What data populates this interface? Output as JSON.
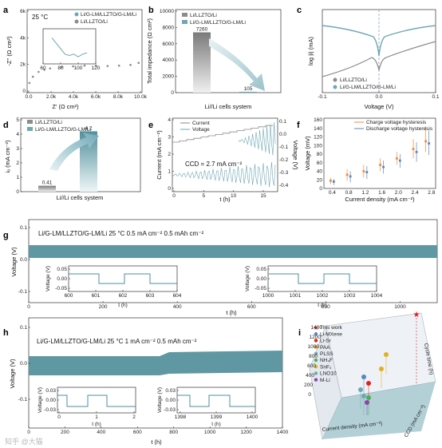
{
  "colors": {
    "gray": "#8c8c8c",
    "teal": "#6fa8b5",
    "orange": "#f08a3c",
    "blue": "#5a86c2",
    "red": "#e02020",
    "green": "#4caf50",
    "purple": "#8e44ad",
    "yellow": "#e0b020"
  },
  "watermark": "知乎 @大猫",
  "chart_data": [
    {
      "id": "a",
      "label": "a",
      "type": "scatter",
      "ylabel": "-Z'' (Ω cm²)",
      "xlabel": "Z' (Ω cm²)",
      "xlim": [
        0,
        10000
      ],
      "ylim": [
        0,
        6000
      ],
      "xticks": [
        "0.0",
        "2.0k",
        "4.0k",
        "6.0k",
        "8.0k",
        "10.0k"
      ],
      "yticks": [
        "0",
        "2k",
        "4k",
        "6k"
      ],
      "annotation": "25 °C",
      "series": [
        {
          "name": "Li/G-LM/LLZTO/G-LM/Li",
          "color": "teal"
        },
        {
          "name": "Li/LLZTO/Li",
          "color": "gray",
          "x": [
            0,
            200,
            500,
            1000,
            1500,
            2000,
            3000,
            4000,
            5000,
            6000,
            7000,
            8000,
            9000,
            9700
          ],
          "y": [
            0,
            700,
            1150,
            1500,
            1650,
            1750,
            1850,
            1900,
            1950,
            1950,
            1920,
            1950,
            2000,
            2150
          ]
        }
      ],
      "inset": {
        "xticks": [
          "60",
          "80",
          "100",
          "120"
        ],
        "xlim": [
          60,
          120
        ],
        "x": [
          70,
          75,
          80,
          85,
          90,
          95,
          100,
          105,
          110
        ],
        "y": [
          0.9,
          0.7,
          0.5,
          0.3,
          0.25,
          0.3,
          0.2,
          0.3,
          0.35
        ]
      }
    },
    {
      "id": "b",
      "label": "b",
      "type": "bar",
      "ylabel": "Total impedance (Ω cm²)",
      "xlabel": "Li//Li cells system",
      "ylim": [
        0,
        10000
      ],
      "yticks": [
        "0",
        "2000",
        "4000",
        "6000",
        "8000",
        "10000"
      ],
      "series": [
        {
          "name": "Li/LLZTO/Li",
          "color": "gray",
          "value": 7260,
          "value_label": "7260"
        },
        {
          "name": "Li/G-LM/LLZTO/G-LM/Li",
          "color": "teal",
          "value": 105,
          "value_label": "105"
        }
      ]
    },
    {
      "id": "c",
      "label": "c",
      "type": "line",
      "ylabel": "log |i| (mA)",
      "xlabel": "Voltage (V)",
      "xlim": [
        -0.1,
        0.1
      ],
      "ylim": [
        -6,
        2
      ],
      "xticks": [
        "-0.1",
        "0.0",
        "0.1"
      ],
      "series": [
        {
          "name": "Li/LLZTO/Li",
          "color": "gray"
        },
        {
          "name": "Li/G-LM/LLZTO/G-LM/Li",
          "color": "teal"
        }
      ]
    },
    {
      "id": "d",
      "label": "d",
      "type": "bar",
      "ylabel": "iₒ (mA cm⁻²)",
      "xlabel": "Li//Li cells system",
      "ylim": [
        0,
        5
      ],
      "yticks": [
        "0",
        "1",
        "2",
        "3",
        "4",
        "5"
      ],
      "series": [
        {
          "name": "Li/LLZTO/Li",
          "color": "gray",
          "value": 0.41,
          "value_label": "0.41"
        },
        {
          "name": "Li/G-LM/LLZTO/G-LM/Li",
          "color": "teal",
          "value": 4.2,
          "value_label": "4.2"
        }
      ]
    },
    {
      "id": "e",
      "label": "e",
      "type": "line",
      "ylabel": "Current (mA cm⁻²)",
      "y2label": "Voltage (V)",
      "xlabel": "t (h)",
      "xlim": [
        0,
        16
      ],
      "xticks": [
        "0",
        "5",
        "10",
        "15"
      ],
      "yticks": [
        "0",
        "1",
        "2",
        "3",
        "4"
      ],
      "y2ticks": [
        "0.1",
        "0.0",
        "-0.1",
        "-0.2",
        "-0.3",
        "-0.4"
      ],
      "annotation": "CCD = 2.7 mA cm⁻²",
      "series": [
        {
          "name": "Current",
          "color": "gray"
        },
        {
          "name": "Voltage",
          "color": "teal"
        }
      ]
    },
    {
      "id": "f",
      "label": "f",
      "type": "scatter",
      "ylabel": "Voltage (mV)",
      "xlabel": "Current density (mA cm⁻²)",
      "xlim": [
        0.2,
        2.9
      ],
      "ylim": [
        0,
        160
      ],
      "xticks": [
        "0.4",
        "0.8",
        "1.2",
        "1.6",
        "2.0",
        "2.4",
        "2.8"
      ],
      "yticks": [
        "0",
        "20",
        "40",
        "60",
        "80",
        "100",
        "120",
        "140",
        "160"
      ],
      "x": [
        0.4,
        0.8,
        1.2,
        1.6,
        2.0,
        2.4,
        2.7
      ],
      "series": [
        {
          "name": "Charge voltage hysteresis",
          "color": "orange",
          "mean": [
            18,
            32,
            40,
            55,
            70,
            92,
            110
          ],
          "lo": [
            10,
            18,
            25,
            40,
            55,
            70,
            85
          ],
          "hi": [
            25,
            45,
            55,
            70,
            85,
            115,
            145
          ]
        },
        {
          "name": "Discharge voltage hysteresis",
          "color": "blue",
          "mean": [
            16,
            28,
            38,
            50,
            65,
            85,
            105
          ],
          "lo": [
            8,
            14,
            22,
            35,
            48,
            62,
            78
          ],
          "hi": [
            22,
            40,
            52,
            65,
            80,
            108,
            135
          ]
        }
      ]
    },
    {
      "id": "g",
      "label": "g",
      "type": "line",
      "ylabel": "Voltage (V)",
      "xlabel": "t (h)",
      "xlim": [
        0,
        1100
      ],
      "ylim": [
        -0.1,
        0.1
      ],
      "xticks": [
        "0",
        "200",
        "400",
        "600",
        "800",
        "1000"
      ],
      "yticks": [
        "0.1",
        "0.0",
        "-0.1"
      ],
      "title": "Li/G-LM/LLZTO/G-LM/Li     25 °C   0.5 mA cm⁻²   0.5 mAh cm⁻²",
      "insets": [
        {
          "xticks": [
            "600",
            "601",
            "602",
            "603",
            "604"
          ],
          "yticks": [
            "0.05",
            "0.00",
            "-0.05"
          ],
          "ylabel": "Voltage (V)",
          "xlabel": "t (h)"
        },
        {
          "xticks": [
            "1000",
            "1001",
            "1002",
            "1003",
            "1004"
          ],
          "yticks": [
            "0.05",
            "0.00",
            "-0.05"
          ],
          "ylabel": "Voltage (V)",
          "xlabel": "t (h)"
        }
      ]
    },
    {
      "id": "h",
      "label": "h",
      "type": "line",
      "ylabel": "Voltage (V)",
      "xlabel": "t (h)",
      "xlim": [
        0,
        1400
      ],
      "ylim": [
        -0.1,
        0.1
      ],
      "xticks": [
        "0",
        "200",
        "400",
        "600",
        "800",
        "1000",
        "1200",
        "1400"
      ],
      "yticks": [
        "0.1",
        "0.0",
        "-0.1"
      ],
      "title": "Li/G-LM/LLZTO/G-LM/Li   25 °C    1 mA cm⁻²   0.5 mAh cm⁻²",
      "insets": [
        {
          "xticks": [
            "0",
            "1",
            "2"
          ],
          "yticks": [
            "0.03",
            "0.00",
            "-0.03"
          ],
          "ylabel": "Voltage (V)",
          "xlabel": "t (h)"
        },
        {
          "xticks": [
            "1398",
            "1399",
            "1400"
          ],
          "yticks": [
            "0.03",
            "0.00",
            "-0.03"
          ],
          "ylabel": "Voltage (V)",
          "xlabel": "t (h)"
        }
      ]
    },
    {
      "id": "i",
      "label": "i",
      "type": "scatter",
      "zlabel": "Cycle time (h)",
      "xlabel": "Current density (mA cm⁻²)",
      "ylabel": "CCD (mA cm⁻²)",
      "zticks": [
        "1400",
        "1200",
        "1000",
        "800",
        "600",
        "400",
        "200",
        "0"
      ],
      "series": [
        {
          "name": "This work",
          "color": "red",
          "marker": "star"
        },
        {
          "name": "Li-MXene",
          "color": "blue"
        },
        {
          "name": "Li-Sr",
          "color": "red"
        },
        {
          "name": "PAA",
          "color": "yellow"
        },
        {
          "name": "PLSS",
          "color": "teal"
        },
        {
          "name": "NH₄F",
          "color": "green"
        },
        {
          "name": "SnF₂",
          "color": "yellow"
        },
        {
          "name": "LNO10",
          "color": "teal"
        },
        {
          "name": "M-Li",
          "color": "purple"
        }
      ]
    }
  ]
}
